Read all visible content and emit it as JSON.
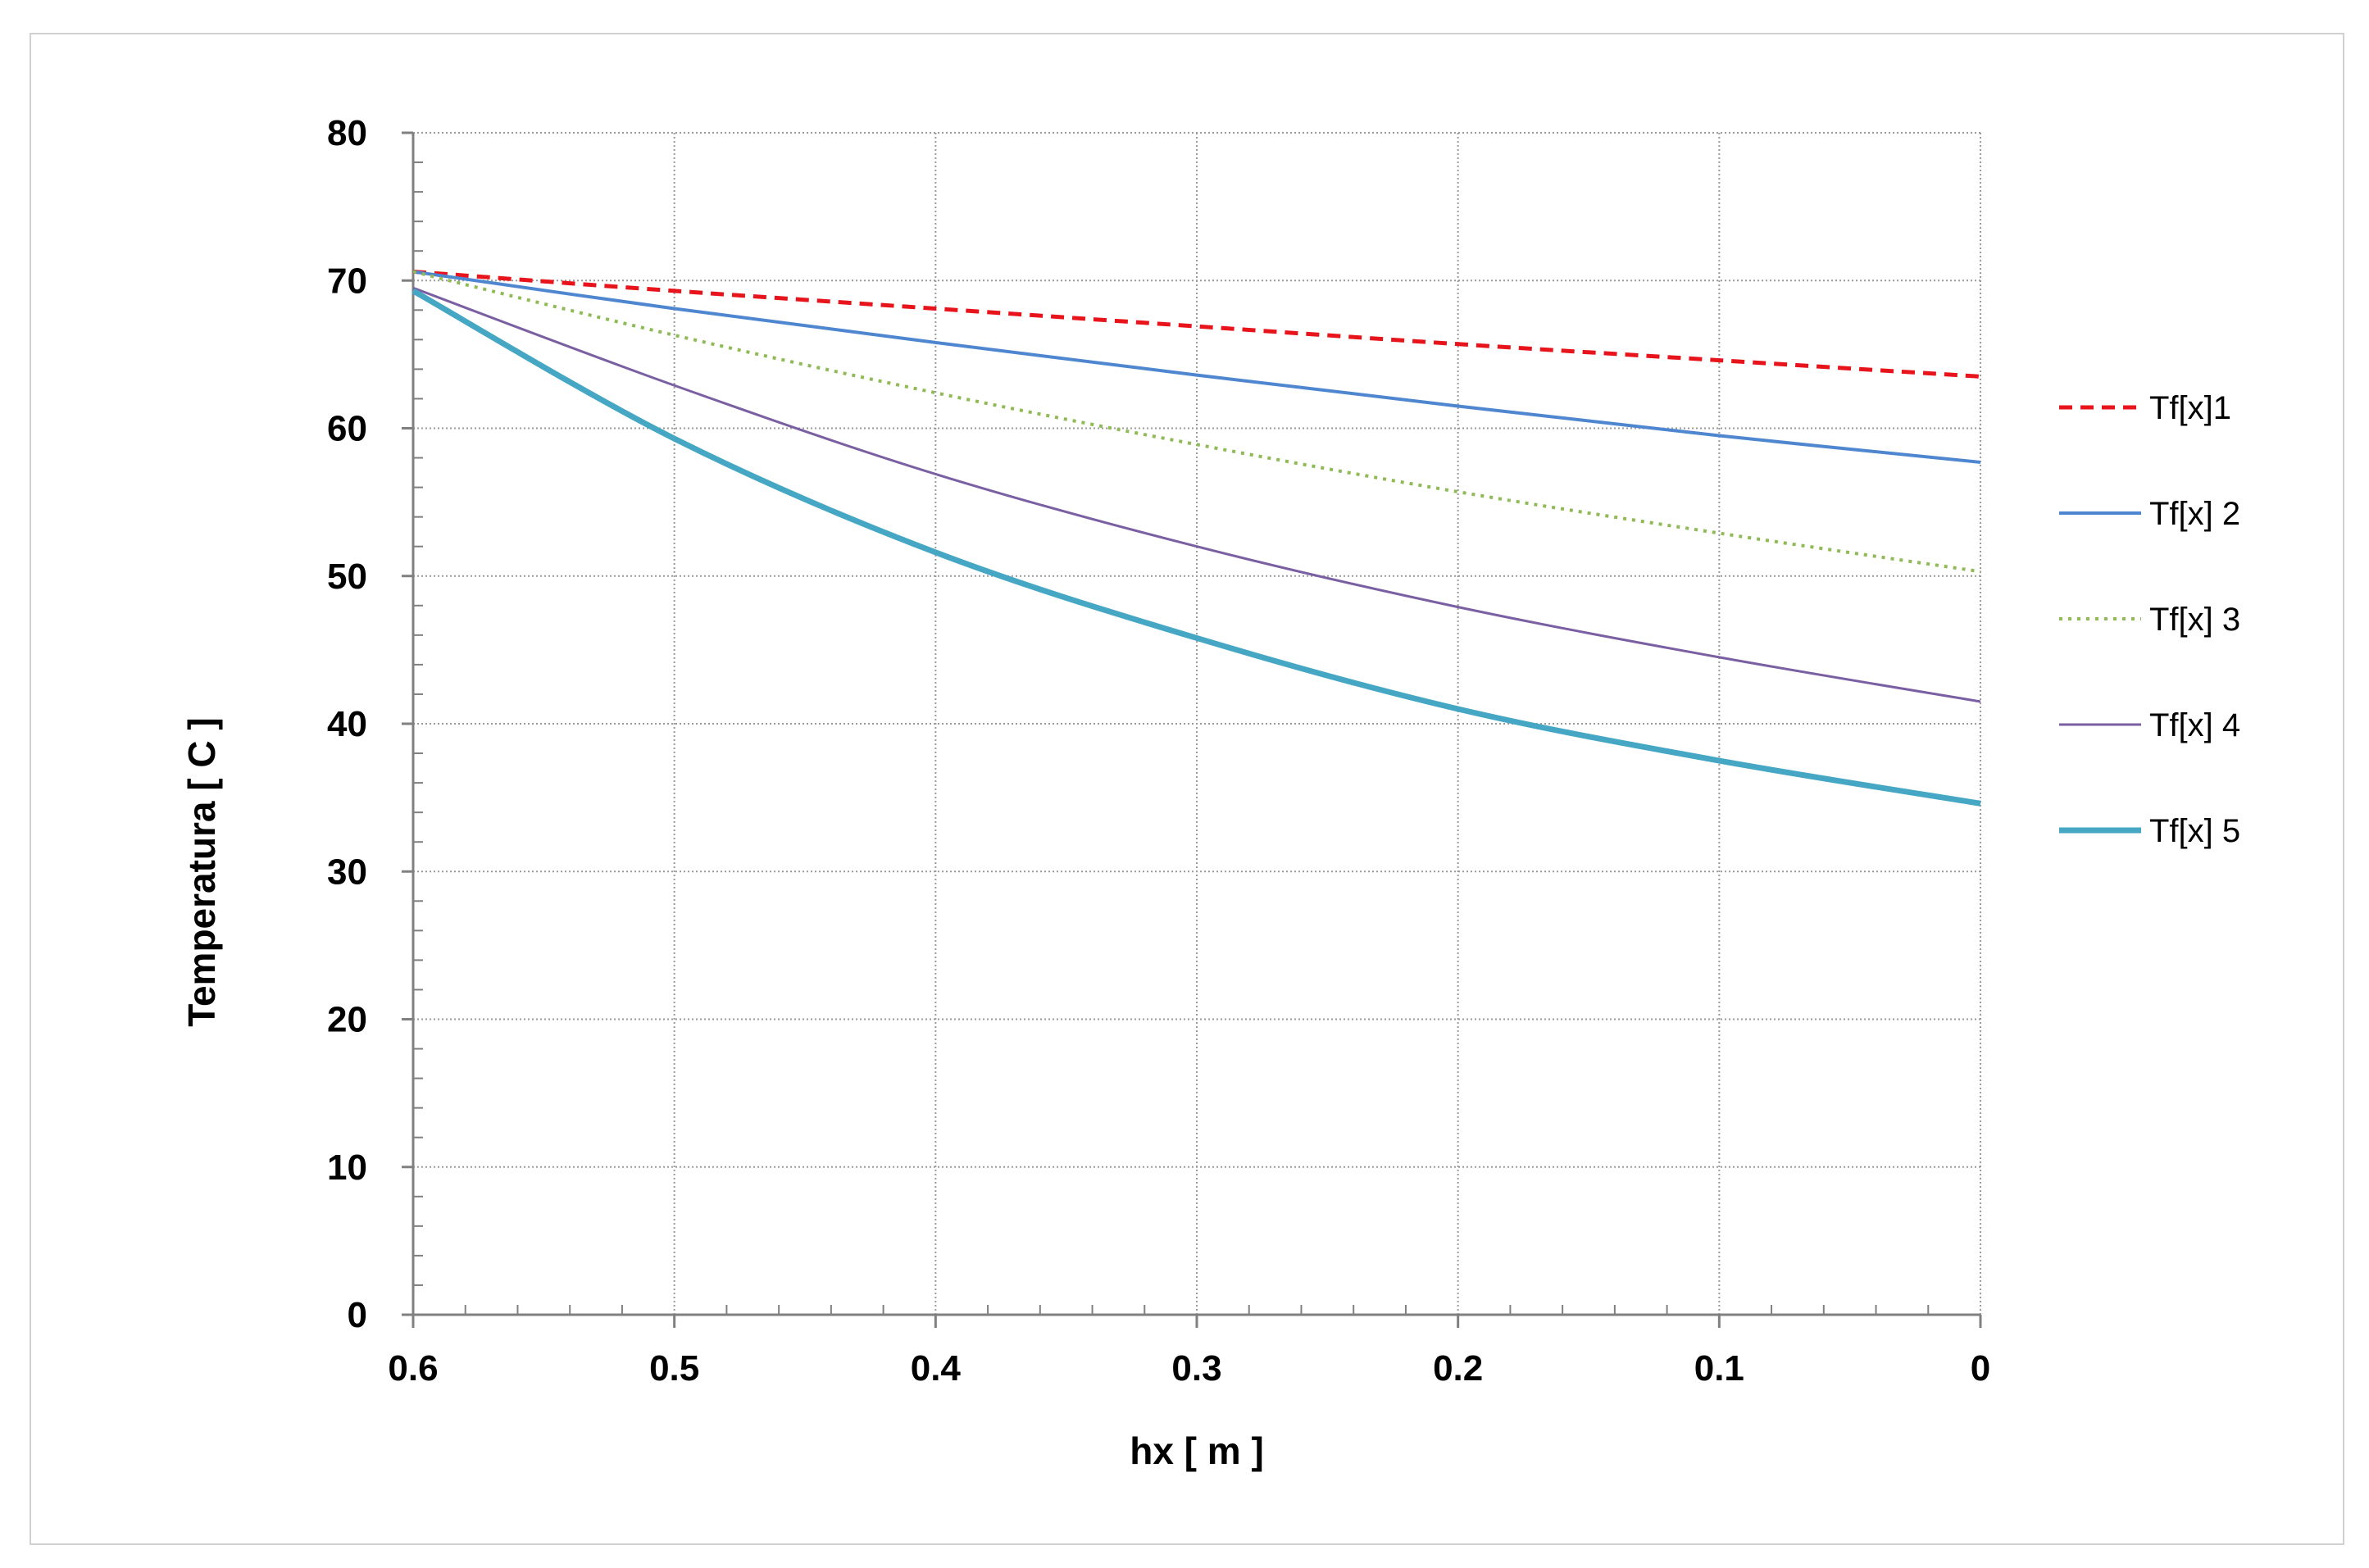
{
  "chart_data": {
    "type": "line",
    "title": "",
    "xlabel": "hx [ m ]",
    "ylabel": "Temperatura [ C ]",
    "xlim": [
      0.6,
      0
    ],
    "ylim": [
      0,
      80
    ],
    "x_reversed": true,
    "grid": true,
    "x_ticks": [
      "0.6",
      "0.5",
      "0.4",
      "0.3",
      "0.2",
      "0.1",
      "0"
    ],
    "x_tick_values": [
      0.6,
      0.5,
      0.4,
      0.3,
      0.2,
      0.1,
      0
    ],
    "y_ticks": [
      "0",
      "10",
      "20",
      "30",
      "40",
      "50",
      "60",
      "70",
      "80"
    ],
    "y_tick_values": [
      0,
      10,
      20,
      30,
      40,
      50,
      60,
      70,
      80
    ],
    "legend_position": "right",
    "x": [
      0.6,
      0.5,
      0.4,
      0.3,
      0.2,
      0.1,
      0
    ],
    "series": [
      {
        "name": "Tf[x]1",
        "values": [
          70.6,
          69.3,
          68.1,
          66.9,
          65.7,
          64.6,
          63.5
        ],
        "color": "#e8141c",
        "style": "dashed",
        "width": 5
      },
      {
        "name": "Tf[x] 2",
        "values": [
          70.6,
          68.1,
          65.8,
          63.6,
          61.5,
          59.5,
          57.7
        ],
        "color": "#4f86d0",
        "style": "solid",
        "width": 4
      },
      {
        "name": "Tf[x] 3",
        "values": [
          70.6,
          66.3,
          62.4,
          58.9,
          55.7,
          52.9,
          50.3
        ],
        "color": "#8fba55",
        "style": "dotted",
        "width": 4
      },
      {
        "name": "Tf[x] 4",
        "values": [
          69.5,
          62.9,
          56.9,
          52.0,
          47.9,
          44.5,
          41.5
        ],
        "color": "#7b5fa3",
        "style": "solid",
        "width": 3
      },
      {
        "name": "Tf[x] 5",
        "values": [
          69.3,
          59.3,
          51.6,
          45.8,
          41.0,
          37.5,
          34.6
        ],
        "color": "#45a7c4",
        "style": "solid",
        "width": 7
      }
    ]
  }
}
